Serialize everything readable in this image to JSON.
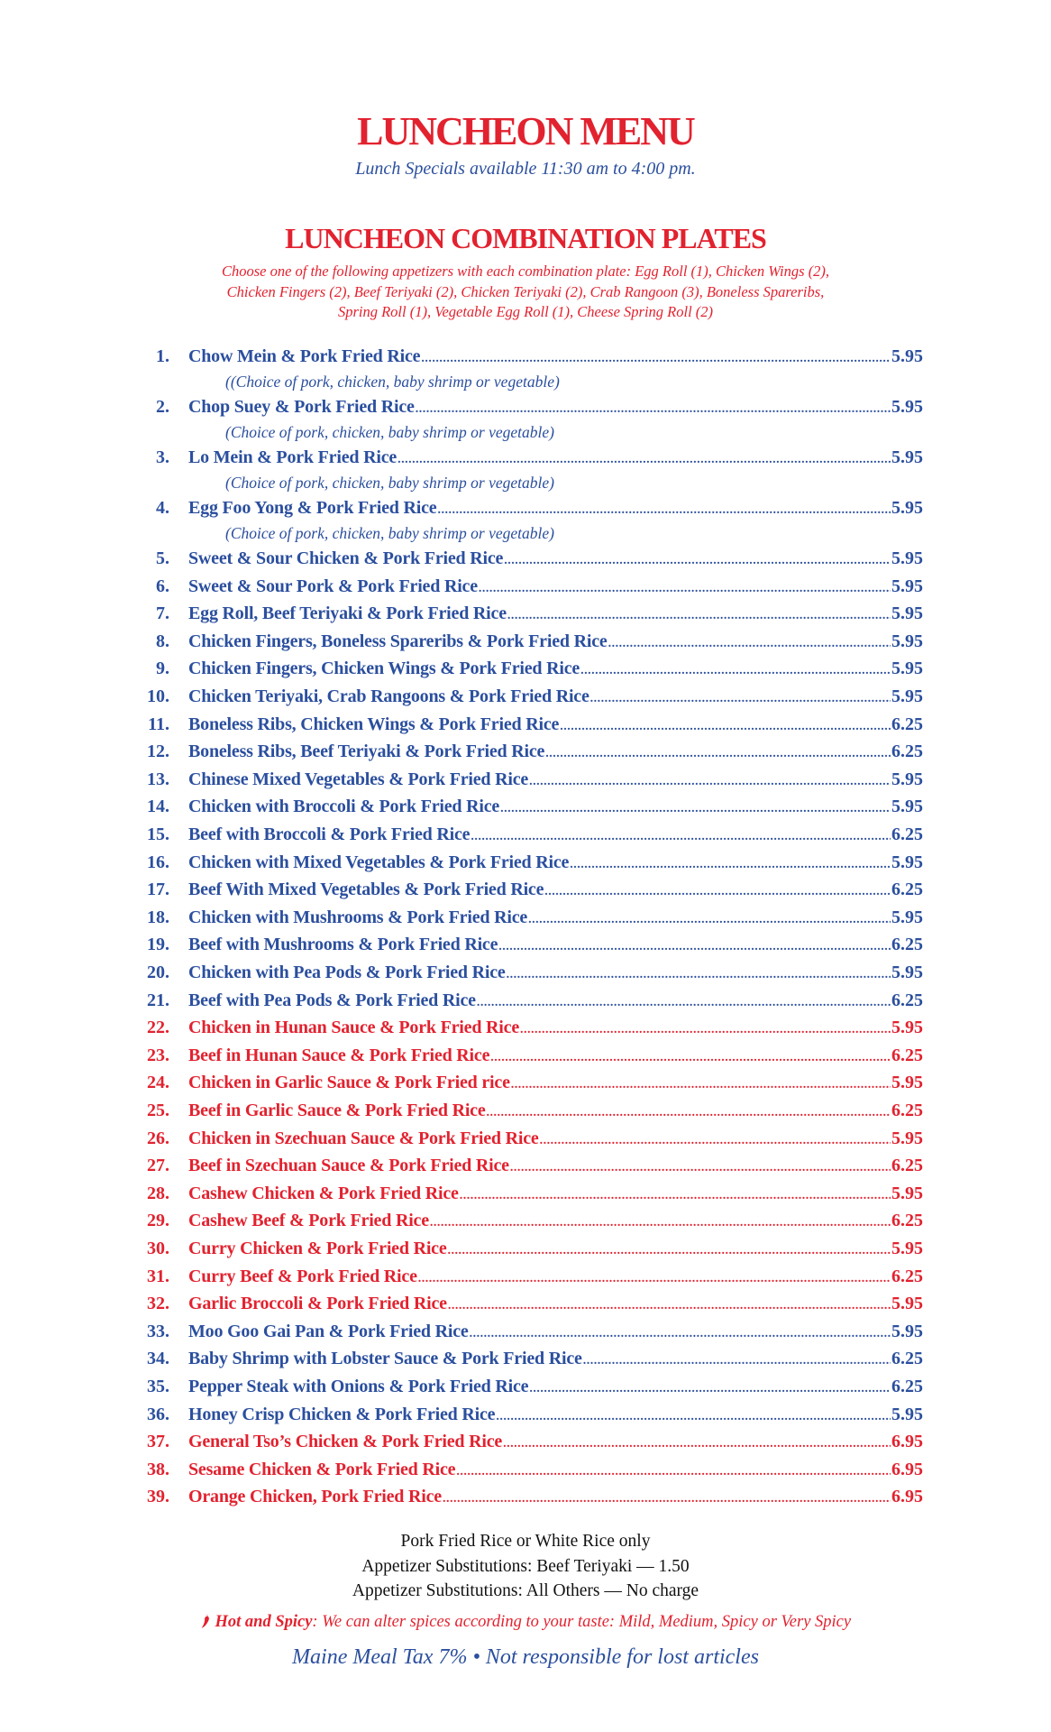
{
  "header": {
    "title": "LUNCHEON MENU",
    "subtitle": "Lunch Specials available  11:30 am to 4:00 pm."
  },
  "section": {
    "title": "LUNCHEON COMBINATION PLATES",
    "description": [
      "Choose one of the following appetizers with each combination plate: Egg Roll (1), Chicken Wings (2),",
      "Chicken Fingers (2), Beef Teriyaki (2), Chicken Teriyaki (2), Crab Rangoon (3), Boneless Spareribs,",
      "Spring Roll (1), Vegetable Egg Roll (1), Cheese Spring Roll (2)"
    ]
  },
  "colors": {
    "red": "#e2222f",
    "blue": "#2b4f9e"
  },
  "items": [
    {
      "num": "1.",
      "name": "Chow Mein & Pork Fried Rice",
      "price": "5.95",
      "spicy": false,
      "note": "((Choice of pork, chicken, baby shrimp or vegetable)"
    },
    {
      "num": "2.",
      "name": "Chop Suey & Pork Fried Rice",
      "price": "5.95",
      "spicy": false,
      "note": "(Choice of pork, chicken, baby shrimp or vegetable)"
    },
    {
      "num": "3.",
      "name": "Lo Mein & Pork Fried Rice",
      "price": "5.95",
      "spicy": false,
      "note": "(Choice of pork, chicken, baby shrimp or vegetable)"
    },
    {
      "num": "4.",
      "name": "Egg Foo Yong & Pork Fried Rice",
      "price": "5.95",
      "spicy": false,
      "note": "(Choice of pork, chicken, baby shrimp or vegetable)"
    },
    {
      "num": "5.",
      "name": "Sweet & Sour Chicken & Pork Fried Rice",
      "price": "5.95",
      "spicy": false
    },
    {
      "num": "6.",
      "name": "Sweet & Sour Pork & Pork Fried Rice",
      "price": "5.95",
      "spicy": false
    },
    {
      "num": "7.",
      "name": "Egg Roll, Beef Teriyaki & Pork Fried Rice",
      "price": "5.95",
      "spicy": false
    },
    {
      "num": "8.",
      "name": "Chicken Fingers, Boneless Spareribs & Pork Fried Rice",
      "price": "5.95",
      "spicy": false
    },
    {
      "num": "9.",
      "name": "Chicken Fingers, Chicken Wings & Pork Fried Rice",
      "price": "5.95",
      "spicy": false
    },
    {
      "num": "10.",
      "name": "Chicken Teriyaki, Crab Rangoons & Pork Fried Rice",
      "price": "5.95",
      "spicy": false
    },
    {
      "num": "11.",
      "name": "Boneless Ribs, Chicken Wings & Pork Fried Rice",
      "price": "6.25",
      "spicy": false
    },
    {
      "num": "12.",
      "name": "Boneless Ribs, Beef Teriyaki & Pork Fried Rice",
      "price": "6.25",
      "spicy": false
    },
    {
      "num": "13.",
      "name": "Chinese Mixed Vegetables & Pork Fried Rice",
      "price": "5.95",
      "spicy": false
    },
    {
      "num": "14.",
      "name": "Chicken with Broccoli & Pork Fried Rice",
      "price": "5.95",
      "spicy": false
    },
    {
      "num": "15.",
      "name": "Beef with Broccoli & Pork Fried Rice",
      "price": "6.25",
      "spicy": false
    },
    {
      "num": "16.",
      "name": "Chicken with Mixed Vegetables & Pork Fried Rice",
      "price": "5.95",
      "spicy": false
    },
    {
      "num": "17.",
      "name": "Beef With Mixed Vegetables & Pork Fried Rice",
      "price": "6.25",
      "spicy": false
    },
    {
      "num": "18.",
      "name": "Chicken with Mushrooms & Pork Fried Rice",
      "price": "5.95",
      "spicy": false
    },
    {
      "num": "19.",
      "name": "Beef with Mushrooms & Pork Fried Rice",
      "price": "6.25",
      "spicy": false
    },
    {
      "num": "20.",
      "name": "Chicken with Pea Pods & Pork Fried Rice",
      "price": "5.95",
      "spicy": false
    },
    {
      "num": "21.",
      "name": "Beef with Pea Pods & Pork Fried Rice",
      "price": "6.25",
      "spicy": false
    },
    {
      "num": "22.",
      "name": "Chicken in Hunan Sauce & Pork Fried Rice",
      "price": "5.95",
      "spicy": true
    },
    {
      "num": "23.",
      "name": "Beef in Hunan Sauce & Pork Fried Rice",
      "price": "6.25",
      "spicy": true
    },
    {
      "num": "24.",
      "name": "Chicken in Garlic Sauce & Pork Fried rice",
      "price": "5.95",
      "spicy": true
    },
    {
      "num": "25.",
      "name": "Beef in Garlic Sauce & Pork Fried Rice",
      "price": "6.25",
      "spicy": true
    },
    {
      "num": "26.",
      "name": "Chicken in Szechuan Sauce & Pork Fried Rice",
      "price": "5.95",
      "spicy": true
    },
    {
      "num": "27.",
      "name": "Beef in Szechuan Sauce & Pork Fried Rice",
      "price": "6.25",
      "spicy": true
    },
    {
      "num": "28.",
      "name": "Cashew Chicken & Pork Fried Rice",
      "price": "5.95",
      "spicy": true
    },
    {
      "num": "29.",
      "name": "Cashew Beef & Pork Fried Rice",
      "price": "6.25",
      "spicy": true
    },
    {
      "num": "30.",
      "name": "Curry Chicken & Pork Fried Rice",
      "price": "5.95",
      "spicy": true
    },
    {
      "num": "31.",
      "name": "Curry Beef & Pork Fried Rice",
      "price": "6.25",
      "spicy": true
    },
    {
      "num": "32.",
      "name": "Garlic Broccoli & Pork Fried Rice",
      "price": "5.95",
      "spicy": true
    },
    {
      "num": "33.",
      "name": "Moo Goo Gai Pan & Pork Fried Rice",
      "price": "5.95",
      "spicy": false
    },
    {
      "num": "34.",
      "name": "Baby Shrimp with Lobster Sauce & Pork Fried Rice",
      "price": "6.25",
      "spicy": false
    },
    {
      "num": "35.",
      "name": "Pepper Steak with Onions & Pork Fried Rice",
      "price": "6.25",
      "spicy": false
    },
    {
      "num": "36.",
      "name": "Honey Crisp Chicken & Pork Fried Rice",
      "price": "5.95",
      "spicy": false
    },
    {
      "num": "37.",
      "name": "General Tso’s Chicken & Pork Fried Rice",
      "price": "6.95",
      "spicy": true
    },
    {
      "num": "38.",
      "name": "Sesame Chicken & Pork Fried Rice",
      "price": "6.95",
      "spicy": true
    },
    {
      "num": "39.",
      "name": "Orange Chicken, Pork Fried Rice",
      "price": "6.95",
      "spicy": true
    }
  ],
  "footer": {
    "lines": [
      "Pork Fried Rice or White Rice only",
      "Appetizer Substitutions: Beef Teriyaki — 1.50",
      "Appetizer Substitutions:  All Others — No charge"
    ],
    "hot_label": "Hot and Spicy",
    "hot_text": ":  We can alter spices according to your taste:  Mild, Medium, Spicy or Very Spicy",
    "tax": "Maine Meal Tax 7%   •   Not responsible for lost articles"
  },
  "icons": {
    "spicy": "chili-pepper-icon"
  }
}
